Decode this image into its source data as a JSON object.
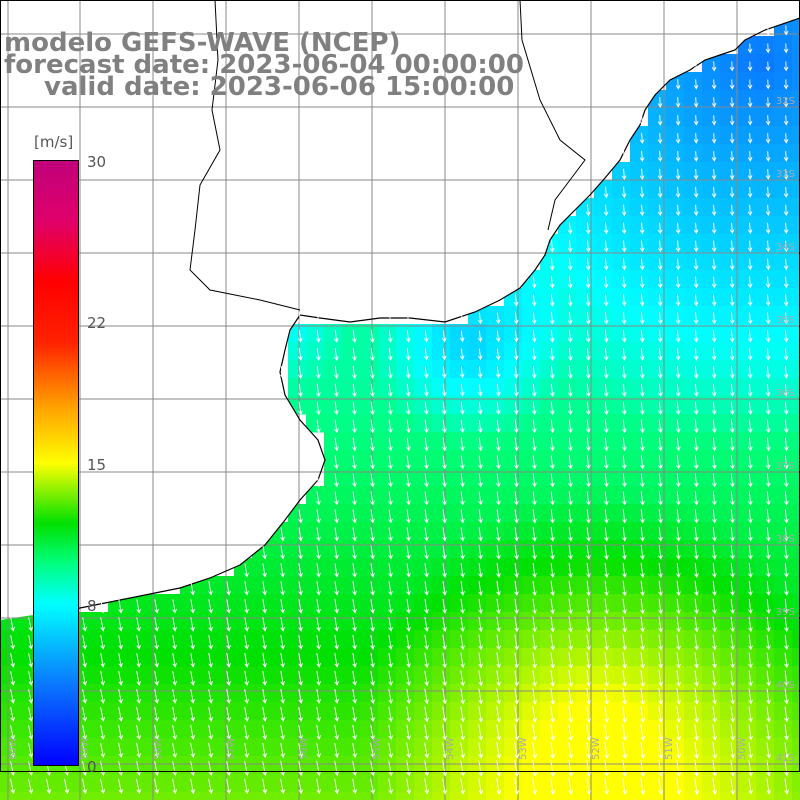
{
  "title": {
    "line1": "modelo GEFS-WAVE (NCEP)",
    "line2": "forecast date: 2023-06-04 00:00:00",
    "line3": "valid date: 2023-06-06 15:00:00"
  },
  "colorbar": {
    "unit": "[m/s]",
    "min": 0,
    "max": 30,
    "ticks": [
      "30",
      "22",
      "15",
      "8",
      "0"
    ],
    "tick_values": [
      30,
      22,
      15,
      8,
      0
    ],
    "stops": [
      {
        "v": 0,
        "color": "#0000ff"
      },
      {
        "v": 4,
        "color": "#0a78ff"
      },
      {
        "v": 8,
        "color": "#00ffff"
      },
      {
        "v": 10,
        "color": "#00ff80"
      },
      {
        "v": 12,
        "color": "#00e000"
      },
      {
        "v": 15,
        "color": "#ffff00"
      },
      {
        "v": 18,
        "color": "#ff9900"
      },
      {
        "v": 21,
        "color": "#ff2200"
      },
      {
        "v": 24,
        "color": "#ff0000"
      },
      {
        "v": 27,
        "color": "#e0006a"
      },
      {
        "v": 30,
        "color": "#c0007a"
      }
    ]
  },
  "map": {
    "lon_range": [
      -60,
      -50
    ],
    "lat_range": [
      -43,
      -32
    ],
    "field": "wind speed at 10 m with direction arrows",
    "lat_labels": [
      "32S",
      "33S",
      "34S",
      "35S",
      "36S",
      "37S",
      "38S",
      "39S",
      "40S",
      "41S"
    ],
    "lon_labels": [
      "60W",
      "59W",
      "58W",
      "57W",
      "56W",
      "55W",
      "54W",
      "53W",
      "52W",
      "51W",
      "50W"
    ]
  }
}
